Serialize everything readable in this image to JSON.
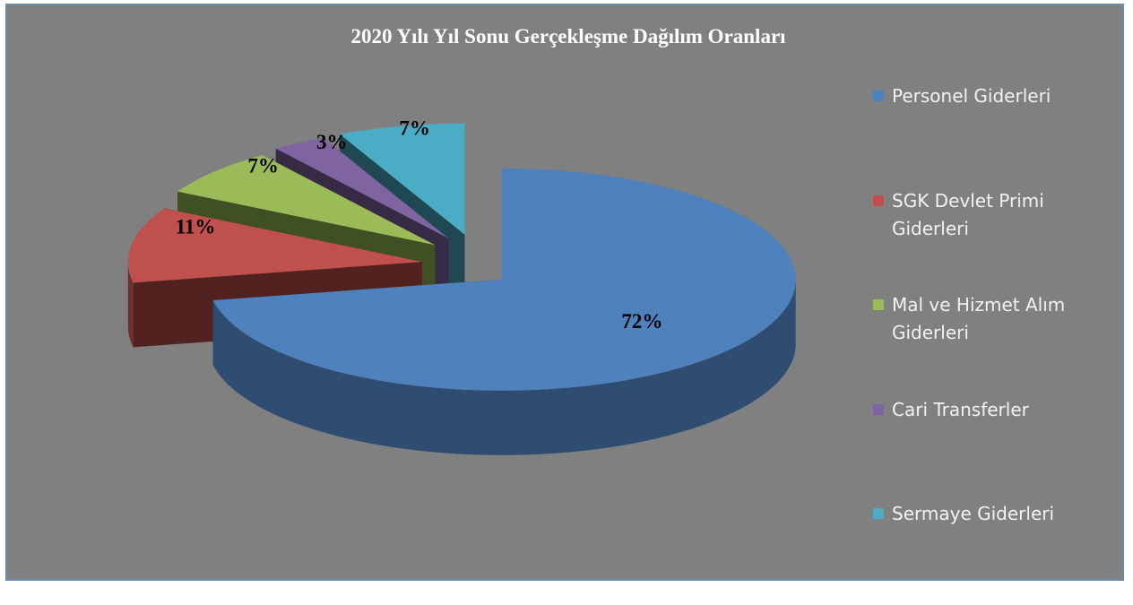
{
  "chart_data": {
    "type": "pie",
    "title": "2020 Yılı Yıl Sonu Gerçekleşme Dağılım Oranları",
    "categories": [
      "Personel Giderleri",
      "SGK Devlet Primi Giderleri",
      "Mal ve Hizmet Alım Giderleri",
      "Cari Transferler",
      "Sermaye Giderleri"
    ],
    "values": [
      72,
      11,
      7,
      3,
      7
    ],
    "value_labels": [
      "72%",
      "11%",
      "7%",
      "3%",
      "7%"
    ],
    "colors": [
      "#4f81bd",
      "#c0504d",
      "#9bbb59",
      "#8064a2",
      "#4bacc6"
    ],
    "legend": "right"
  }
}
